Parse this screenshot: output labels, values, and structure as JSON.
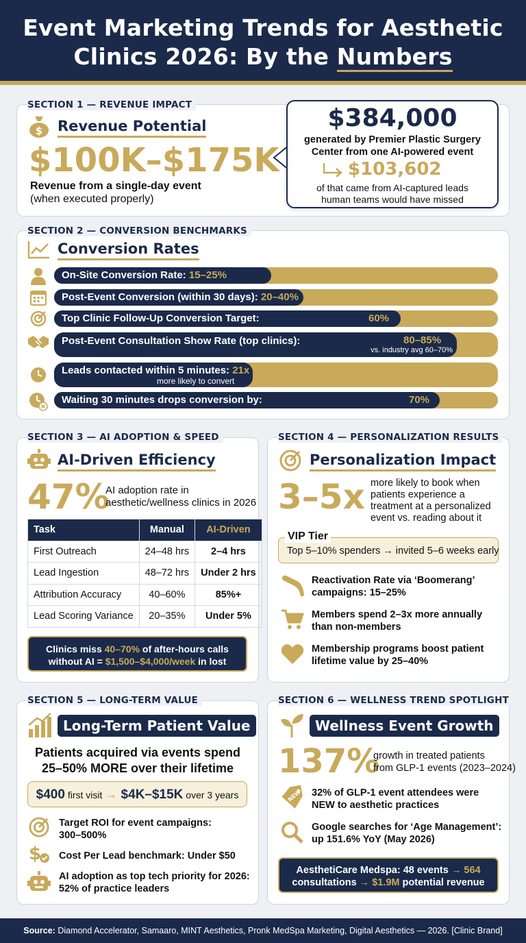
{
  "header": {
    "title_line1": "Event Marketing Trends for Aesthetic",
    "title_line2_pre": "Clinics 2026: By the ",
    "title_line2_ul": "Numbers"
  },
  "s1": {
    "label": "SECTION 1 — REVENUE IMPACT",
    "title": "Revenue Potential",
    "range": "$100K–$175K",
    "desc1": "Revenue from a single-day event",
    "desc2": "(when executed properly)",
    "callout": {
      "amount": "$384,000",
      "line1": "generated by Premier Plastic Surgery",
      "line2": "Center from one AI-powered event",
      "sub_amount": "$103,602",
      "line3": "of that came from AI-captured leads",
      "line4": "human teams would have missed"
    }
  },
  "s2": {
    "label": "SECTION 2 — CONVERSION BENCHMARKS",
    "title": "Conversion Rates",
    "bars": [
      {
        "label": "On-Site Conversion Rate: ",
        "value": "15–25%",
        "icon": "person-icon",
        "fill": 0.49
      },
      {
        "label": "Post-Event Conversion (within 30 days): ",
        "value": "20–40%",
        "icon": "calendar-icon",
        "fill": 0.56
      },
      {
        "label": "Top Clinic Follow-Up Conversion Target:",
        "value": "60%",
        "icon": "target-icon",
        "fill": 0.78
      },
      {
        "label": "Post-Event Consultation Show Rate (top clinics):",
        "value": "80–85%",
        "sub": "vs. industry avg 60–70%",
        "icon": "handshake-icon",
        "fill": 0.9
      },
      {
        "label": "Leads contacted within 5 minutes: ",
        "value": "21x",
        "sub": "more likely to convert",
        "icon": "clock-icon",
        "fill": 0.45
      },
      {
        "label": "Waiting 30 minutes drops conversion by:",
        "value": "70%",
        "icon": "clock-cancel-icon",
        "fill": 0.87
      }
    ]
  },
  "s3": {
    "label": "SECTION 3 — AI ADOPTION & SPEED",
    "title": "AI-Driven Efficiency",
    "stat": "47%",
    "stat_desc1": "AI adoption rate in",
    "stat_desc2": "aesthetic/wellness clinics in 2026",
    "table": {
      "headers": [
        "Task",
        "Manual",
        "AI-Driven"
      ],
      "rows": [
        [
          "First Outreach",
          "24–48 hrs",
          "2–4 hrs"
        ],
        [
          "Lead Ingestion",
          "48–72 hrs",
          "Under 2 hrs"
        ],
        [
          "Attribution Accuracy",
          "40–60%",
          "85%+"
        ],
        [
          "Lead Scoring Variance",
          "20–35%",
          "Under 5%"
        ]
      ]
    },
    "note": {
      "p1": "Clinics miss ",
      "g1": "40–70%",
      "p2": " of after-hours calls",
      "p3": "without AI = ",
      "g2": "$1,500–$4,000/week",
      "p4": " in lost revenue"
    }
  },
  "s4": {
    "label": "SECTION 4 — PERSONALIZATION RESULTS",
    "title": "Personalization Impact",
    "stat": "3–5x",
    "stat_desc": [
      "more likely to book when",
      "patients experience a",
      "treatment at a personalized",
      "event vs. reading about it"
    ],
    "vip_title": "VIP Tier",
    "vip_text": "Top 5–10% spenders → invited 5–6 weeks early",
    "items": [
      {
        "icon": "boomerang-icon",
        "l1": "Reactivation Rate via ‘Boomerang’",
        "l2": "campaigns: 15–25%"
      },
      {
        "icon": "cart-icon",
        "l1": "Members spend 2–3x more annually",
        "l2": "than non-members"
      },
      {
        "icon": "heart-icon",
        "l1": "Membership programs boost patient",
        "l2": "lifetime value by 25–40%"
      }
    ]
  },
  "s5": {
    "label": "SECTION 5 — LONG-TERM VALUE",
    "title": "Long-Term Patient Value",
    "head1": "Patients acquired via events spend",
    "head2": "25–50% MORE over their lifetime",
    "pill": {
      "a": "$400",
      "b": " first visit ",
      "arrow": "→",
      "c": " $4K–$15K",
      "d": " over 3 years"
    },
    "items": [
      {
        "icon": "target-icon",
        "l1": "Target ROI for event campaigns:",
        "l2": "300–500%"
      },
      {
        "icon": "dollar-check-icon",
        "l1": "Cost Per Lead benchmark: Under $50",
        "l2": ""
      },
      {
        "icon": "robot-icon",
        "l1": "AI adoption as top tech priority for 2026:",
        "l2": "52% of practice leaders"
      }
    ]
  },
  "s6": {
    "label": "SECTION 6 — WELLNESS TREND SPOTLIGHT",
    "title": "Wellness Event Growth",
    "stat": "137%",
    "stat_desc1": "growth in treated patients",
    "stat_desc2": "from GLP-1 events (2023–2024)",
    "items": [
      {
        "icon": "new-tag-icon",
        "l1": "32% of GLP-1 event attendees were",
        "l2": "NEW to aesthetic practices"
      },
      {
        "icon": "magnifier-icon",
        "l1": "Google searches for ‘Age Management’:",
        "l2": "up 151.6% YoY (May 2026)"
      }
    ],
    "note": {
      "p1": "AesthetiCare Medspa: 48 events ",
      "g1": "→ 564",
      "p2": "consultations ",
      "g2": "→ $1.9M",
      "p3": " potential revenue"
    }
  },
  "footer": {
    "src": "Source:",
    "text": " Diamond Accelerator, Samaaro, MINT Aesthetics, Pronk MedSpa Marketing, Digital Aesthetics — 2026. [Clinic Brand]"
  },
  "colors": {
    "navy": "#1b2a4a",
    "gold": "#c9a95a"
  }
}
